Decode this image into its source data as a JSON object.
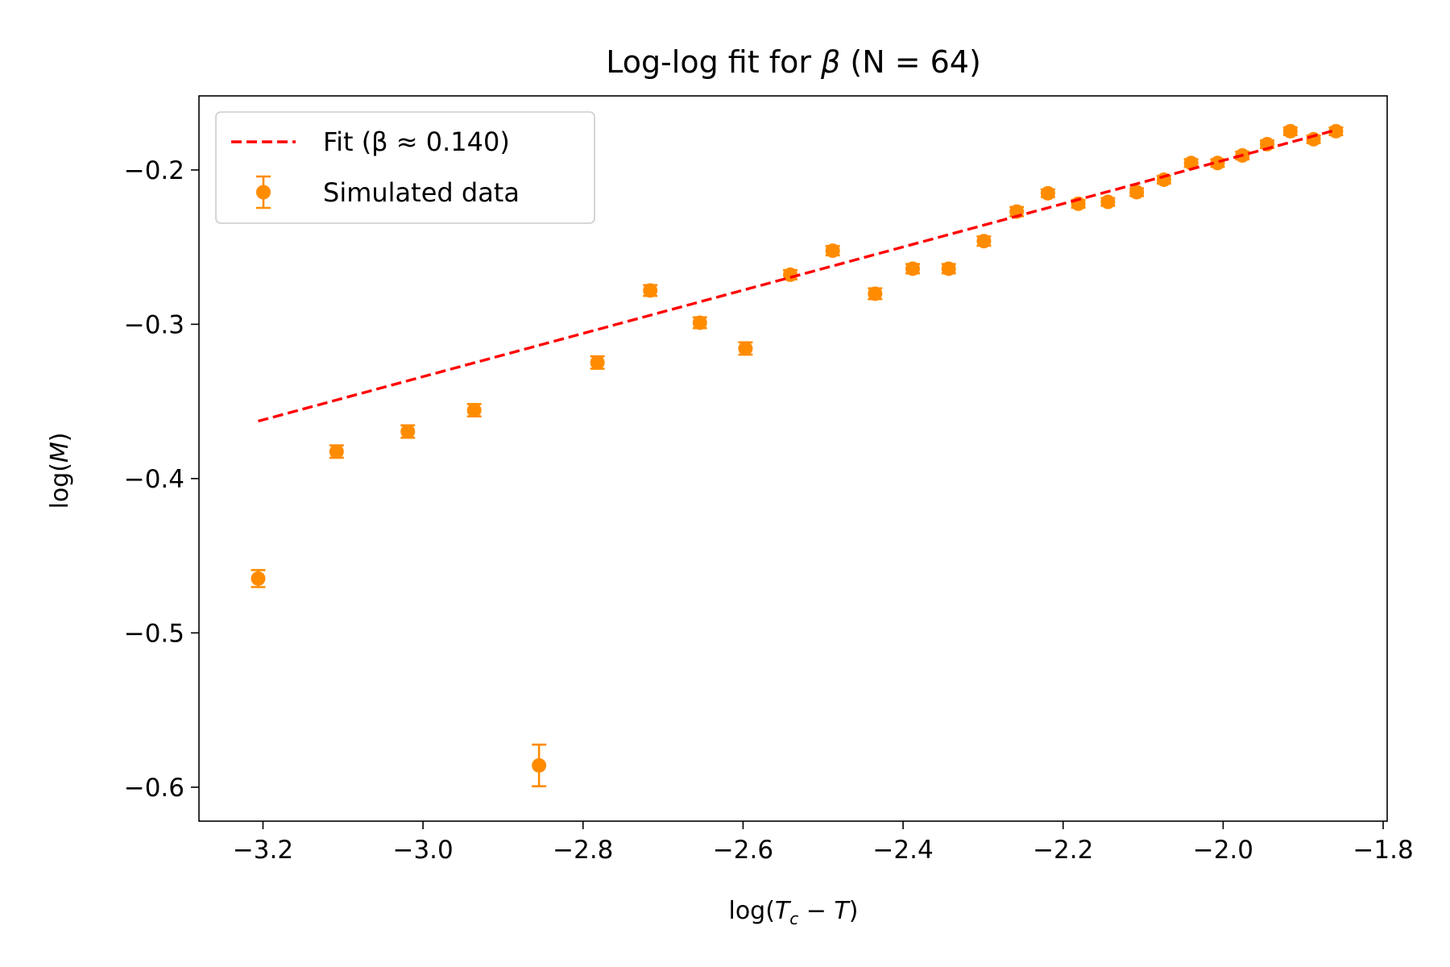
{
  "chart_data": {
    "type": "scatter",
    "title": "Log-log fit for β (N = 64)",
    "xlabel": "log(T_c − T)",
    "ylabel": "log(M)",
    "xlim": [
      -3.28,
      -1.795
    ],
    "ylim": [
      -0.622,
      -0.152
    ],
    "x_ticks": [
      -3.2,
      -3.0,
      -2.8,
      -2.6,
      -2.4,
      -2.2,
      -2.0,
      -1.8
    ],
    "x_tick_labels": [
      "−3.2",
      "−3.0",
      "−2.8",
      "−2.6",
      "−2.4",
      "−2.2",
      "−2.0",
      "−1.8"
    ],
    "y_ticks": [
      -0.2,
      -0.3,
      -0.4,
      -0.5,
      -0.6
    ],
    "y_tick_labels": [
      "−0.2",
      "−0.3",
      "−0.4",
      "−0.5",
      "−0.6"
    ],
    "grid": false,
    "legend_position": "top-left",
    "series": [
      {
        "name": "Fit (β ≈ 0.140)",
        "kind": "line",
        "style": "dashed",
        "color": "#ff0000",
        "x": [
          -3.206,
          -1.859
        ],
        "y": [
          -0.3628,
          -0.1741
        ]
      },
      {
        "name": "Simulated data",
        "kind": "errorbar",
        "color": "#ff8c00",
        "x": [
          -3.206,
          -3.108,
          -3.019,
          -2.936,
          -2.855,
          -2.782,
          -2.716,
          -2.654,
          -2.597,
          -2.541,
          -2.488,
          -2.435,
          -2.388,
          -2.343,
          -2.299,
          -2.258,
          -2.219,
          -2.181,
          -2.144,
          -2.108,
          -2.074,
          -2.04,
          -2.007,
          -1.976,
          -1.945,
          -1.916,
          -1.887,
          -1.859
        ],
        "y": [
          -0.4648,
          -0.3825,
          -0.3695,
          -0.3557,
          -0.5859,
          -0.3248,
          -0.2781,
          -0.299,
          -0.3157,
          -0.2679,
          -0.2523,
          -0.2802,
          -0.264,
          -0.264,
          -0.2461,
          -0.227,
          -0.2151,
          -0.2219,
          -0.2207,
          -0.2144,
          -0.2063,
          -0.1955,
          -0.1955,
          -0.1906,
          -0.1833,
          -0.1749,
          -0.1801,
          -0.1749
        ],
        "err": [
          0.0055,
          0.004,
          0.004,
          0.004,
          0.0135,
          0.004,
          0.0035,
          0.0035,
          0.004,
          0.003,
          0.003,
          0.0035,
          0.003,
          0.003,
          0.003,
          0.003,
          0.0025,
          0.0025,
          0.0025,
          0.0025,
          0.0025,
          0.0025,
          0.0025,
          0.0025,
          0.0025,
          0.0025,
          0.0025,
          0.0025
        ]
      }
    ]
  }
}
